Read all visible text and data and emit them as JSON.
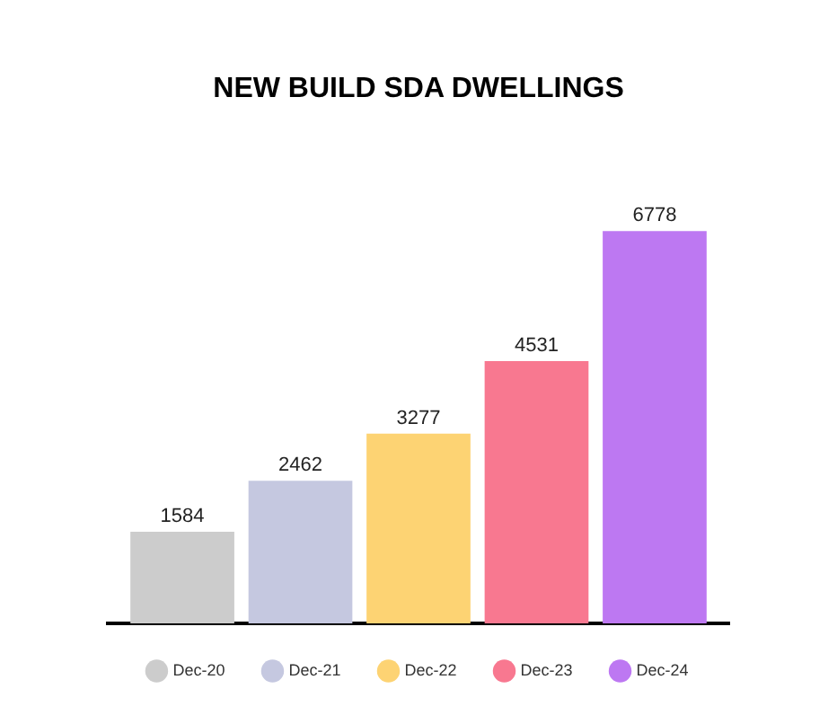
{
  "chart_data": {
    "type": "bar",
    "title": "NEW BUILD SDA DWELLINGS",
    "categories": [
      null
    ],
    "series": [
      {
        "name": "Dec-20",
        "color": "#cccccc",
        "values": [
          1584
        ]
      },
      {
        "name": "Dec-21",
        "color": "#c5c8e0",
        "values": [
          2462
        ]
      },
      {
        "name": "Dec-22",
        "color": "#fdd373",
        "values": [
          3277
        ]
      },
      {
        "name": "Dec-23",
        "color": "#f87890",
        "values": [
          4531
        ]
      },
      {
        "name": "Dec-24",
        "color": "#bd78f2",
        "values": [
          6778
        ]
      }
    ],
    "data_labels": true,
    "legend": "bottom",
    "tick_labels": false,
    "grid": false
  }
}
